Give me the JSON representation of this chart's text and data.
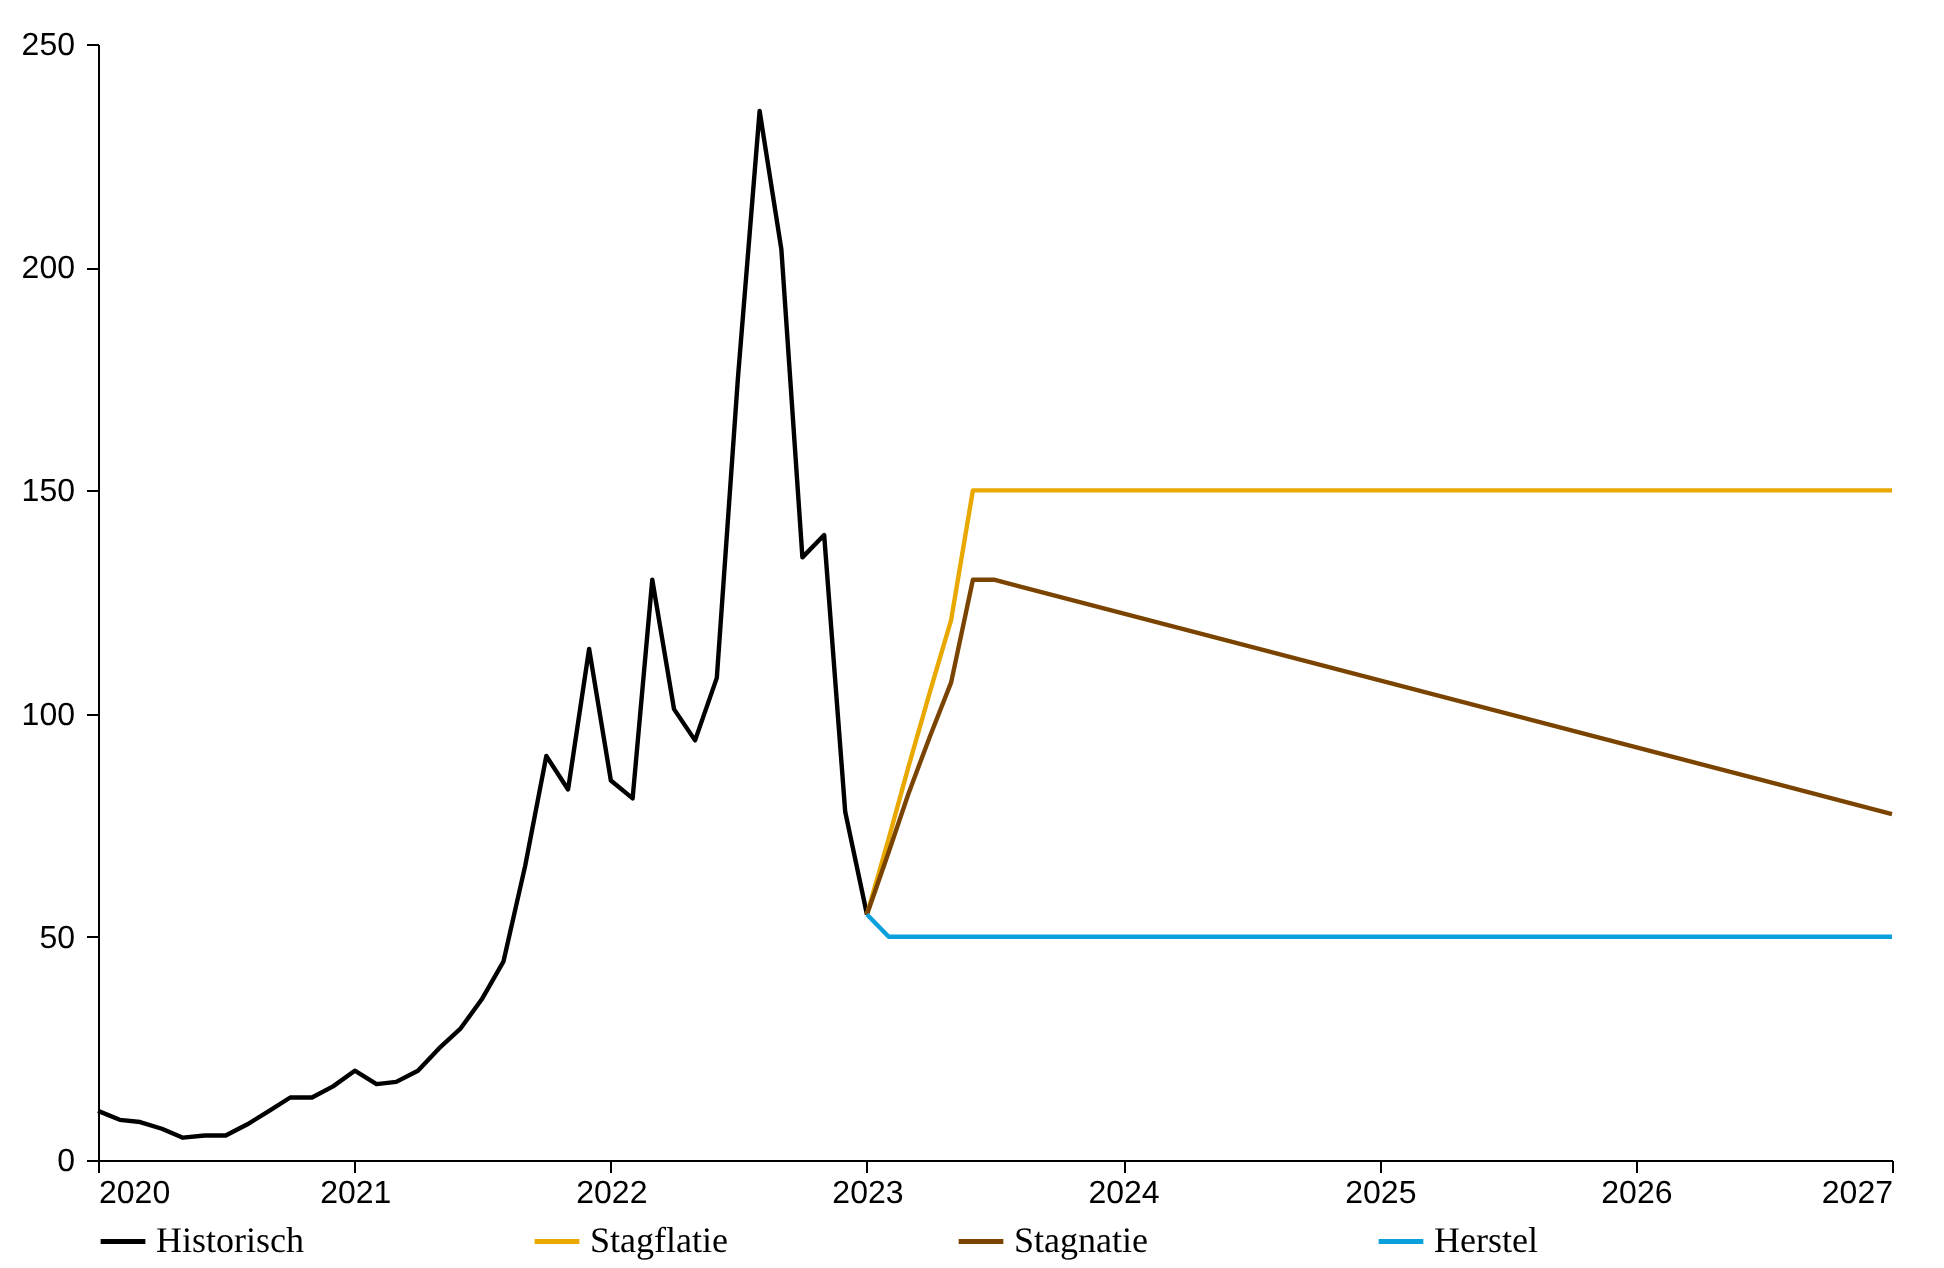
{
  "chart_data": {
    "type": "line",
    "xlim": [
      "2020",
      "2027"
    ],
    "xticks": [
      "2020",
      "2021",
      "2022",
      "2023",
      "2024",
      "2025",
      "2026",
      "2027"
    ],
    "ylim": [
      0,
      250
    ],
    "yticks": [
      0,
      50,
      100,
      150,
      200,
      250
    ],
    "grid": false,
    "legend": "bottom",
    "marker": "none",
    "line_style": "solid",
    "series": [
      {
        "name": "Historisch",
        "color": "#000000",
        "x": [
          "2020-01",
          "2020-02",
          "2020-03",
          "2020-04",
          "2020-05",
          "2020-06",
          "2020-07",
          "2020-08",
          "2020-09",
          "2020-10",
          "2020-11",
          "2020-12",
          "2021-01",
          "2021-02",
          "2021-03",
          "2021-04",
          "2021-05",
          "2021-06",
          "2021-07",
          "2021-08",
          "2021-09",
          "2021-10",
          "2021-11",
          "2021-12",
          "2022-01",
          "2022-02",
          "2022-03",
          "2022-04",
          "2022-05",
          "2022-06",
          "2022-07",
          "2022-08",
          "2022-09",
          "2022-10",
          "2022-11",
          "2022-12",
          "2023-01"
        ],
        "values": [
          11,
          9,
          8.5,
          7,
          5,
          5.5,
          5.5,
          8,
          11,
          14,
          14,
          16.5,
          20,
          17,
          17.5,
          20,
          25,
          29.5,
          36,
          44.5,
          66,
          90.5,
          83,
          114.5,
          85,
          81,
          130,
          101,
          94,
          108,
          175,
          235,
          204,
          135,
          140,
          78,
          55
        ]
      },
      {
        "name": "Stagflatie",
        "color": "#e8a800",
        "x": [
          "2023-01",
          "2023-02",
          "2023-03",
          "2023-04",
          "2023-05",
          "2023-06",
          "2027-01"
        ],
        "values": [
          55,
          72,
          88,
          105,
          121,
          150,
          150
        ]
      },
      {
        "name": "Stagnatie",
        "color": "#7a4400",
        "x": [
          "2023-01",
          "2023-02",
          "2023-03",
          "2023-04",
          "2023-05",
          "2023-06",
          "2023-07",
          "2027-01"
        ],
        "values": [
          55,
          69,
          82,
          95,
          107,
          130,
          130,
          77.5
        ]
      },
      {
        "name": "Herstel",
        "color": "#0aa0dc",
        "x": [
          "2023-01",
          "2023-02",
          "2027-01"
        ],
        "values": [
          55,
          50,
          50
        ]
      }
    ]
  }
}
